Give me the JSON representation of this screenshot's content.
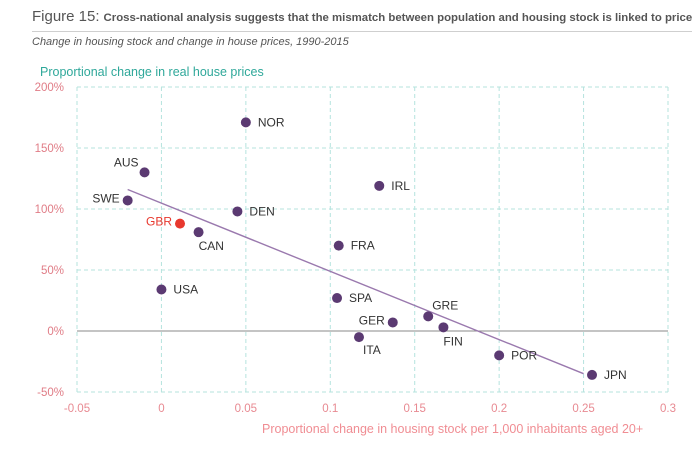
{
  "header": {
    "figure_label": "Figure 15:",
    "figure_text": "Cross-national analysis suggests that the mismatch between population and housing stock is linked to price",
    "subtitle": "Change in housing stock and change in house prices, 1990-2015"
  },
  "colors": {
    "point": "#5b3a72",
    "highlight": "#e8382e",
    "trend": "#9a79ae",
    "ylabel": "#2fa89a",
    "xlabel": "#f08d93",
    "ytick": "#e07c86",
    "xtick": "#e88a92",
    "grid": "#b5e3de",
    "label": "#333333"
  },
  "chart_data": {
    "type": "scatter",
    "title": "",
    "xlabel": "Proportional change in housing stock per 1,000 inhabitants aged 20+",
    "ylabel": "Proportional change in real house prices",
    "xlim": [
      -0.05,
      0.3
    ],
    "ylim": [
      -50,
      200
    ],
    "x_ticks": [
      -0.05,
      0,
      0.05,
      0.1,
      0.15,
      0.2,
      0.25,
      0.3
    ],
    "x_tick_labels": [
      "-0.05",
      "0",
      "0.05",
      "0.1",
      "0.15",
      "0.2",
      "0.25",
      "0.3"
    ],
    "y_ticks": [
      -50,
      0,
      50,
      100,
      150,
      200
    ],
    "y_tick_labels": [
      "-50%",
      "0%",
      "50%",
      "100%",
      "150%",
      "200%"
    ],
    "grid": true,
    "points": [
      {
        "label": "NOR",
        "x": 0.05,
        "y": 171
      },
      {
        "label": "AUS",
        "x": -0.01,
        "y": 130
      },
      {
        "label": "IRL",
        "x": 0.129,
        "y": 119
      },
      {
        "label": "SWE",
        "x": -0.02,
        "y": 107
      },
      {
        "label": "DEN",
        "x": 0.045,
        "y": 98
      },
      {
        "label": "GBR",
        "x": 0.011,
        "y": 88,
        "highlight": true
      },
      {
        "label": "CAN",
        "x": 0.022,
        "y": 81
      },
      {
        "label": "FRA",
        "x": 0.105,
        "y": 70
      },
      {
        "label": "USA",
        "x": 0,
        "y": 34
      },
      {
        "label": "SPA",
        "x": 0.104,
        "y": 27
      },
      {
        "label": "GRE",
        "x": 0.158,
        "y": 12
      },
      {
        "label": "GER",
        "x": 0.137,
        "y": 7
      },
      {
        "label": "FIN",
        "x": 0.167,
        "y": 3
      },
      {
        "label": "ITA",
        "x": 0.117,
        "y": -5
      },
      {
        "label": "POR",
        "x": 0.2,
        "y": -20
      },
      {
        "label": "JPN",
        "x": 0.255,
        "y": -36
      }
    ],
    "trendline": {
      "x1": -0.02,
      "y1": 116,
      "x2": 0.25,
      "y2": -35
    }
  }
}
